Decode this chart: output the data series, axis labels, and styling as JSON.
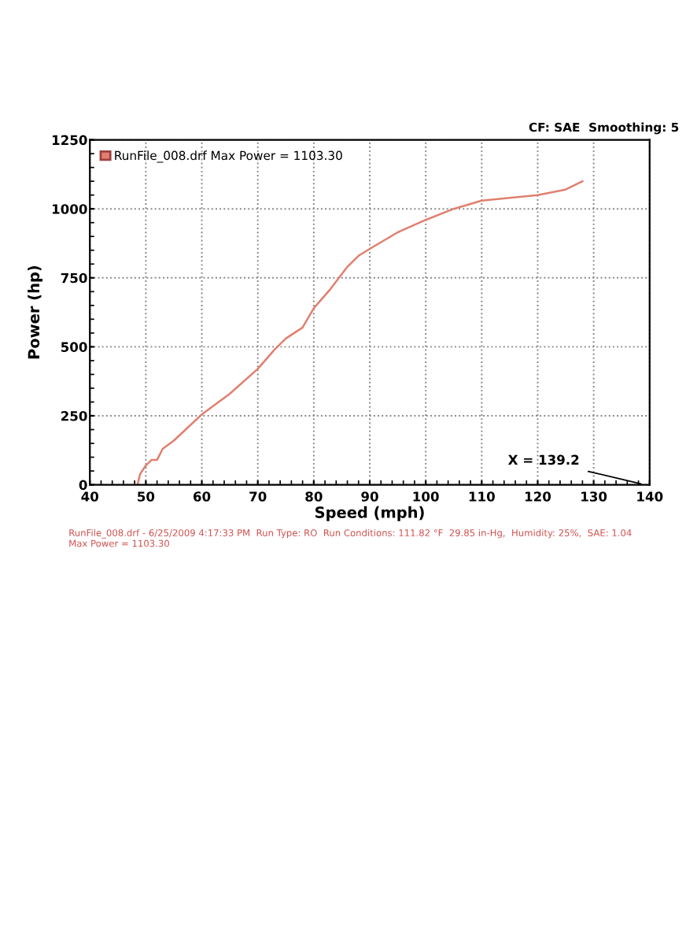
{
  "chart_data": {
    "type": "line",
    "xlabel": "Speed (mph)",
    "ylabel": "Power (hp)",
    "annotations": [
      "CF: SAE  Smoothing: 5",
      "X = 139.2",
      "RunFile_008.drf - 6/25/2009 4:17:33 PM  Run Type: RO  Run Conditions: 111.82 °F  29.85 in-Hg,  Humidity: 25%,  SAE: 1.04\nMax Power = 1103.30"
    ],
    "series": [
      {
        "name": "RunFile_008.drf Max Power = 1103.30",
        "color": "#e08070",
        "x": [
          48.5,
          49,
          50,
          51,
          52,
          53,
          55,
          60,
          65,
          70,
          73,
          75,
          78,
          80,
          83,
          86,
          88,
          90,
          95,
          100,
          105,
          110,
          115,
          120,
          125,
          128
        ],
        "values": [
          0,
          40,
          70,
          90,
          90,
          130,
          160,
          255,
          330,
          420,
          490,
          530,
          570,
          640,
          710,
          790,
          830,
          855,
          915,
          960,
          1000,
          1030,
          1040,
          1050,
          1070,
          1100
        ]
      }
    ],
    "xlim": [
      40,
      140
    ],
    "xticks": [
      40,
      50,
      60,
      70,
      80,
      90,
      100,
      110,
      120,
      130,
      140
    ],
    "ylim": [
      0,
      1250
    ],
    "yticks": [
      0,
      250,
      500,
      750,
      1000,
      1250
    ],
    "grid": true,
    "legend": "top left",
    "marker": "none",
    "line_style": "solid"
  }
}
